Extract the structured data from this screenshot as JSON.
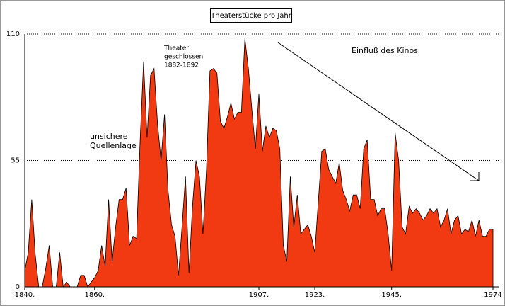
{
  "chart_data": {
    "type": "area",
    "title": "Theaterstücke pro Jahr",
    "annotations": [
      [
        "Theater",
        "geschlossen",
        "1882-1892"
      ],
      [
        "unsichere",
        "Quellenlage"
      ],
      [
        "Einfluß des Kinos"
      ]
    ],
    "color": "#f23a12",
    "x": [
      1840,
      1841,
      1842,
      1843,
      1844,
      1845,
      1846,
      1847,
      1848,
      1849,
      1850,
      1851,
      1852,
      1853,
      1854,
      1855,
      1856,
      1857,
      1858,
      1859,
      1860,
      1861,
      1862,
      1863,
      1864,
      1865,
      1866,
      1867,
      1868,
      1869,
      1870,
      1871,
      1872,
      1873,
      1874,
      1875,
      1876,
      1877,
      1878,
      1879,
      1880,
      1881,
      1882,
      1883,
      1884,
      1885,
      1886,
      1887,
      1888,
      1889,
      1890,
      1891,
      1892,
      1893,
      1894,
      1895,
      1896,
      1897,
      1898,
      1899,
      1900,
      1901,
      1902,
      1903,
      1904,
      1905,
      1906,
      1907,
      1908,
      1909,
      1910,
      1911,
      1912,
      1913,
      1914,
      1915,
      1916,
      1917,
      1918,
      1919,
      1920,
      1921,
      1922,
      1923,
      1924,
      1925,
      1926,
      1927,
      1928,
      1929,
      1930,
      1931,
      1932,
      1933,
      1934,
      1935,
      1936,
      1937,
      1938,
      1939,
      1940,
      1941,
      1942,
      1943,
      1944,
      1945,
      1946,
      1947,
      1948,
      1949,
      1950,
      1951,
      1952,
      1953,
      1954,
      1955,
      1956,
      1957,
      1958,
      1959,
      1960,
      1961,
      1962,
      1963,
      1964,
      1965,
      1966,
      1967,
      1968,
      1969,
      1970,
      1971,
      1972,
      1973,
      1974
    ],
    "values": [
      7,
      15,
      38,
      14,
      0,
      0,
      8,
      18,
      0,
      0,
      15,
      0,
      2,
      0,
      0,
      0,
      5,
      5,
      0,
      2,
      4,
      7,
      18,
      9,
      38,
      11,
      26,
      38,
      38,
      43,
      18,
      22,
      21,
      63,
      98,
      65,
      92,
      95,
      71,
      55,
      75,
      42,
      27,
      22,
      5,
      26,
      48,
      6,
      35,
      55,
      48,
      23,
      51,
      94,
      95,
      93,
      72,
      69,
      74,
      80,
      73,
      76,
      76,
      108,
      95,
      77,
      60,
      84,
      59,
      70,
      65,
      69,
      68,
      60,
      18,
      11,
      48,
      26,
      40,
      23,
      25,
      27,
      22,
      15,
      37,
      59,
      60,
      51,
      48,
      45,
      54,
      42,
      38,
      33,
      40,
      40,
      34,
      60,
      64,
      38,
      38,
      31,
      34,
      34,
      23,
      7,
      67,
      55,
      26,
      23,
      35,
      32,
      34,
      32,
      29,
      31,
      34,
      32,
      34,
      26,
      29,
      34,
      23,
      29,
      31,
      23,
      25,
      24,
      29,
      22,
      29,
      22,
      22,
      25,
      25
    ],
    "xlim": [
      1840,
      1974
    ],
    "xticks": [
      {
        "value": 1840,
        "label": "1840."
      },
      {
        "value": 1860,
        "label": "1860."
      },
      {
        "value": 1907,
        "label": "1907."
      },
      {
        "value": 1923,
        "label": "1923."
      },
      {
        "value": 1945,
        "label": "1945."
      },
      1974
    ],
    "ylim": [
      0,
      110
    ],
    "yticks": [
      0,
      55,
      110
    ],
    "grid": true
  }
}
